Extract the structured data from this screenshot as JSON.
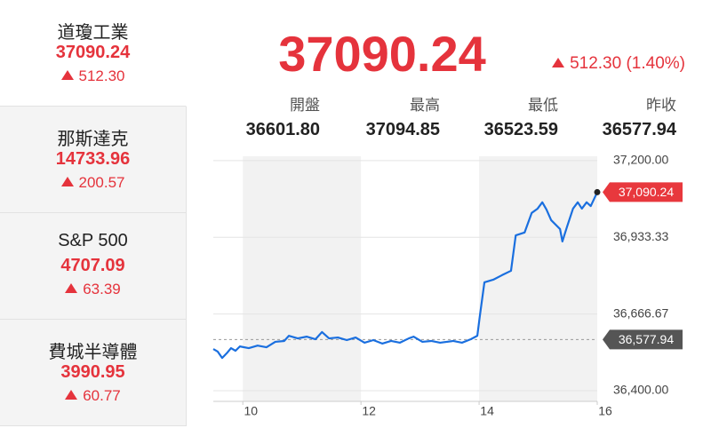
{
  "sidebar": [
    {
      "name": "道瓊工業",
      "price": "37090.24",
      "change": "512.30"
    },
    {
      "name": "那斯達克",
      "price": "14733.96",
      "change": "200.57"
    },
    {
      "name": "S&P 500",
      "price": "4707.09",
      "change": "63.39"
    },
    {
      "name": "費城半導體",
      "price": "3990.95",
      "change": "60.77"
    }
  ],
  "header": {
    "price": "37090.24",
    "change": "512.30 (1.40%)"
  },
  "stats": [
    {
      "label": "開盤",
      "value": "36601.80"
    },
    {
      "label": "最高",
      "value": "37094.85"
    },
    {
      "label": "最低",
      "value": "36523.59"
    },
    {
      "label": "昨收",
      "value": "36577.94"
    }
  ],
  "chart_data": {
    "type": "line",
    "x": [
      9.5,
      9.575,
      9.65,
      9.726,
      9.8,
      9.876,
      9.95,
      10.1,
      10.25,
      10.4,
      10.55,
      10.7,
      10.78,
      10.93,
      11.08,
      11.23,
      11.34,
      11.46,
      11.61,
      11.76,
      11.91,
      12.06,
      12.21,
      12.36,
      12.51,
      12.66,
      12.81,
      12.89,
      13.04,
      13.19,
      13.34,
      13.56,
      13.71,
      13.86,
      13.97,
      14.01,
      14.09,
      14.24,
      14.39,
      14.54,
      14.62,
      14.77,
      14.89,
      14.99,
      15.07,
      15.14,
      15.22,
      15.37,
      15.41,
      15.49,
      15.59,
      15.67,
      15.74,
      15.82,
      15.89,
      16.0
    ],
    "series": [
      {
        "color": "#1a6fdf",
        "values": [
          36545,
          36536,
          36514,
          36530,
          36548,
          36539,
          36554,
          36548,
          36557,
          36551,
          36570,
          36573,
          36591,
          36582,
          36588,
          36579,
          36604,
          36582,
          36585,
          36576,
          36585,
          36567,
          36576,
          36564,
          36573,
          36567,
          36582,
          36588,
          36570,
          36573,
          36567,
          36573,
          36567,
          36579,
          36591,
          36656,
          36777,
          36786,
          36802,
          36817,
          36940,
          36950,
          37018,
          37033,
          37055,
          37030,
          36993,
          36962,
          36919,
          36971,
          37033,
          37055,
          37033,
          37055,
          37042,
          37090.24
        ],
        "value_labels": [
          null,
          null,
          null,
          null,
          null,
          null,
          null,
          null,
          null,
          null,
          null,
          null,
          null,
          null,
          null,
          null,
          null,
          null,
          null,
          null,
          null,
          null,
          null,
          null,
          null,
          null,
          null,
          null,
          null,
          null,
          null,
          null,
          null,
          null,
          null,
          null,
          null,
          null,
          null,
          null,
          null,
          null,
          null,
          null,
          null,
          null,
          null,
          null,
          null,
          null,
          null,
          null,
          null,
          null,
          null,
          "37,090.24"
        ]
      }
    ],
    "reference": {
      "value": 36577.94,
      "label": "36,577.94"
    },
    "xlim": [
      9.5,
      16
    ],
    "xticks": [
      10,
      12,
      14,
      16
    ],
    "ylim": [
      36363,
      37215
    ],
    "yticks": [
      {
        "value": 36400,
        "label": "36,400.00"
      },
      {
        "value": 36666.67,
        "label": "36,666.67"
      },
      {
        "value": 36933.33,
        "label": "36,933.33"
      },
      {
        "value": 37200,
        "label": "37,200.00"
      }
    ],
    "grid": true
  }
}
